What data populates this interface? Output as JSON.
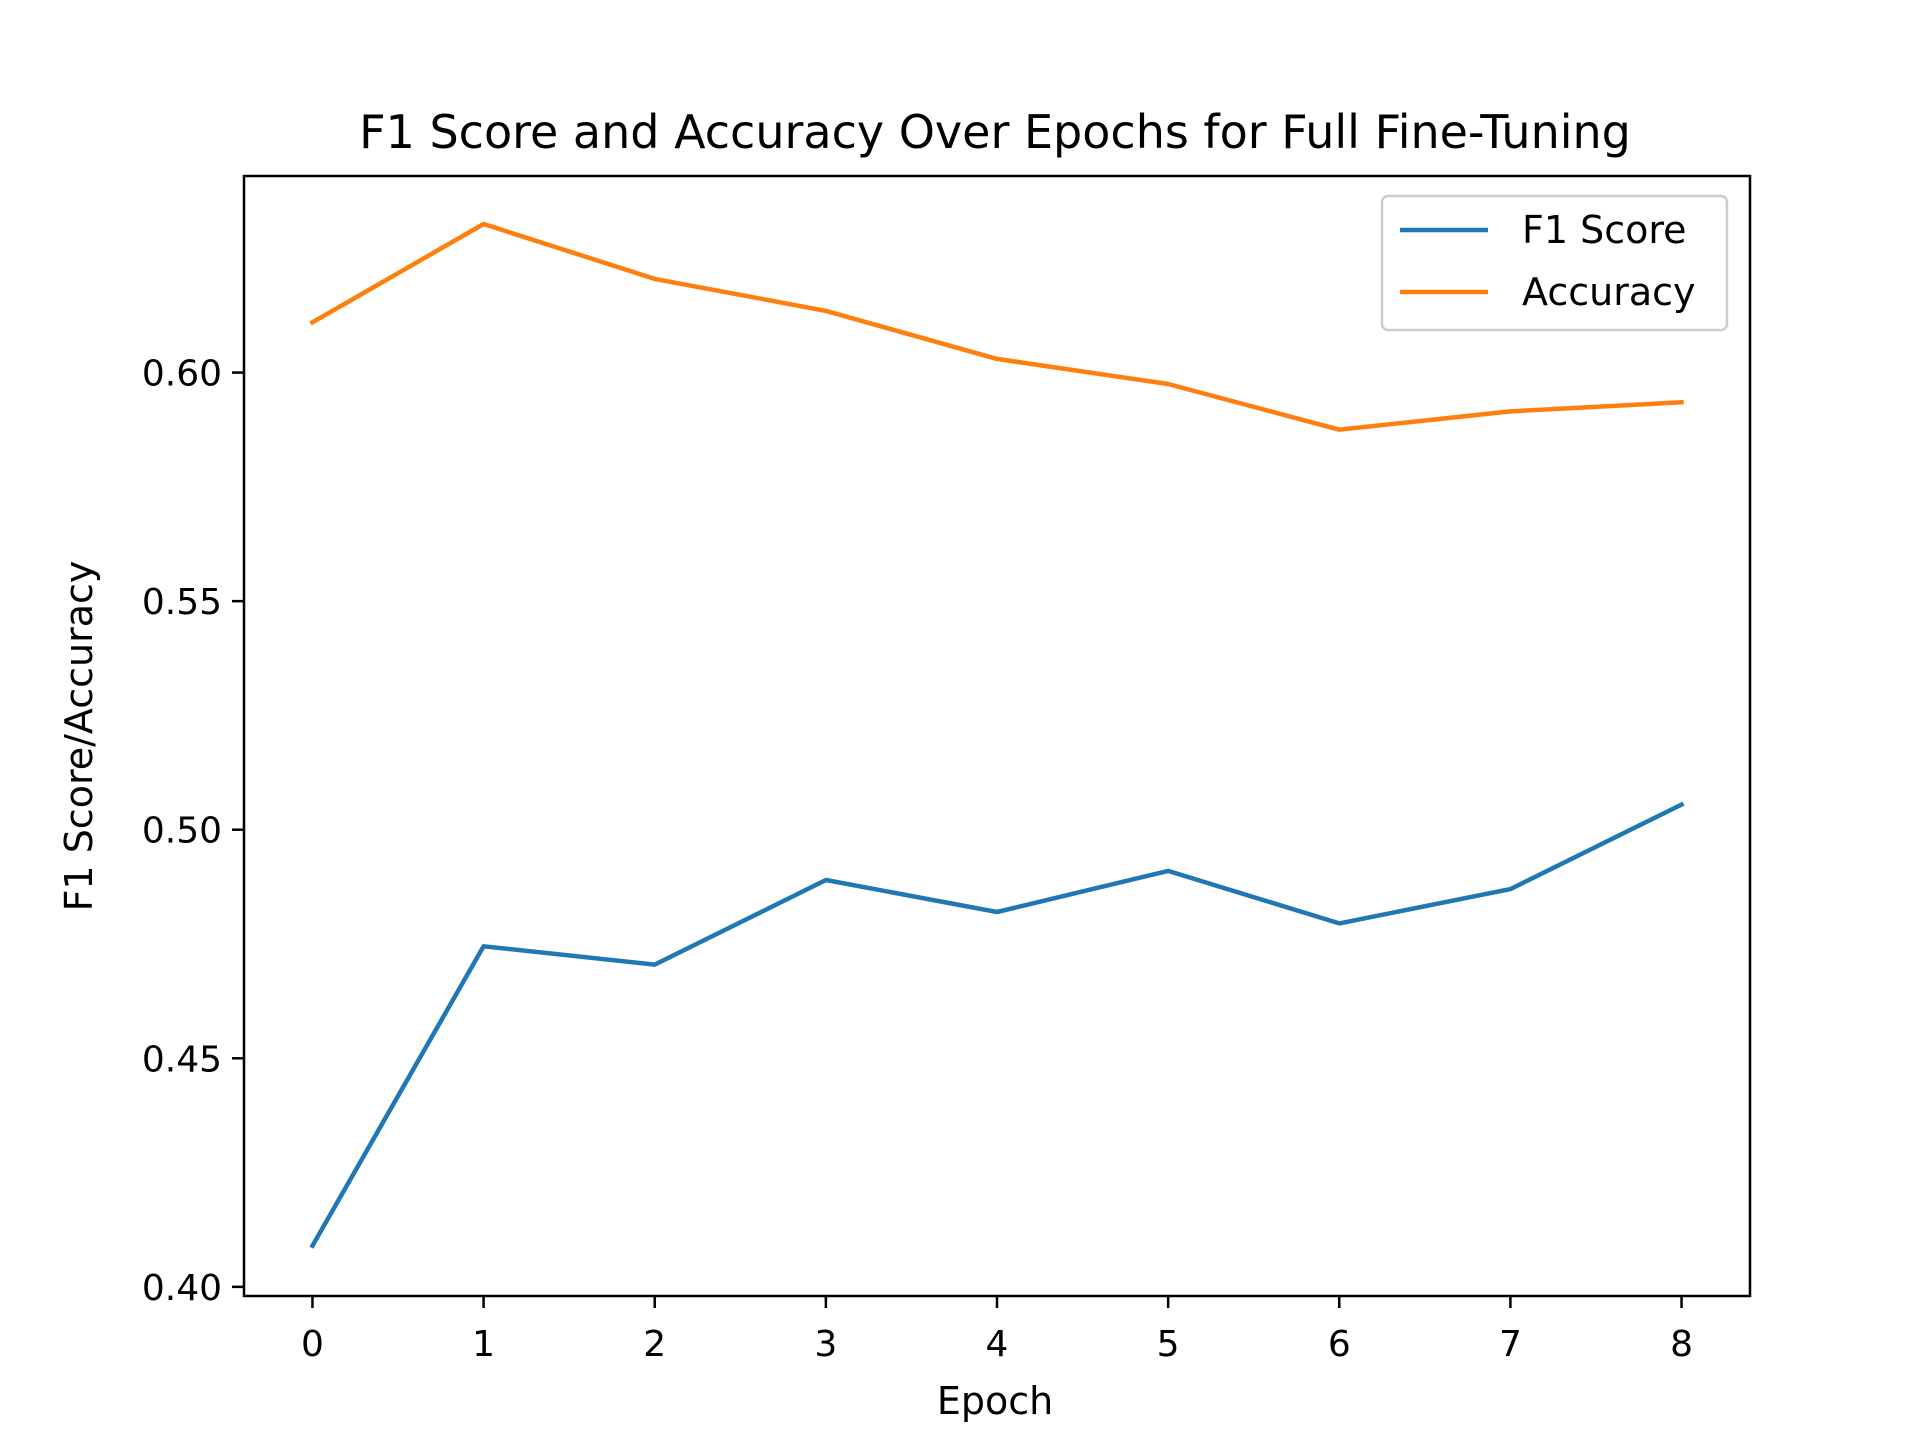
{
  "chart_data": {
    "type": "line",
    "title": "F1 Score and Accuracy Over Epochs for Full Fine-Tuning",
    "xlabel": "Epoch",
    "ylabel": "F1 Score/Accuracy",
    "x": [
      0,
      1,
      2,
      3,
      4,
      5,
      6,
      7,
      8
    ],
    "x_ticks": [
      "0",
      "1",
      "2",
      "3",
      "4",
      "5",
      "6",
      "7",
      "8"
    ],
    "y_ticks": [
      "0.40",
      "0.45",
      "0.50",
      "0.55",
      "0.60"
    ],
    "y_tick_values": [
      0.4,
      0.45,
      0.5,
      0.55,
      0.6
    ],
    "xlim": [
      -0.4,
      8.4
    ],
    "ylim": [
      0.398,
      0.643
    ],
    "grid": false,
    "legend_position": "top-right",
    "series": [
      {
        "name": "F1 Score",
        "color": "#1f77b4",
        "values": [
          0.409,
          0.4745,
          0.4705,
          0.489,
          0.482,
          0.491,
          0.4795,
          0.487,
          0.5055
        ]
      },
      {
        "name": "Accuracy",
        "color": "#ff7f0e",
        "values": [
          0.611,
          0.6325,
          0.6205,
          0.6135,
          0.603,
          0.5975,
          0.5875,
          0.5915,
          0.5935
        ]
      }
    ]
  }
}
